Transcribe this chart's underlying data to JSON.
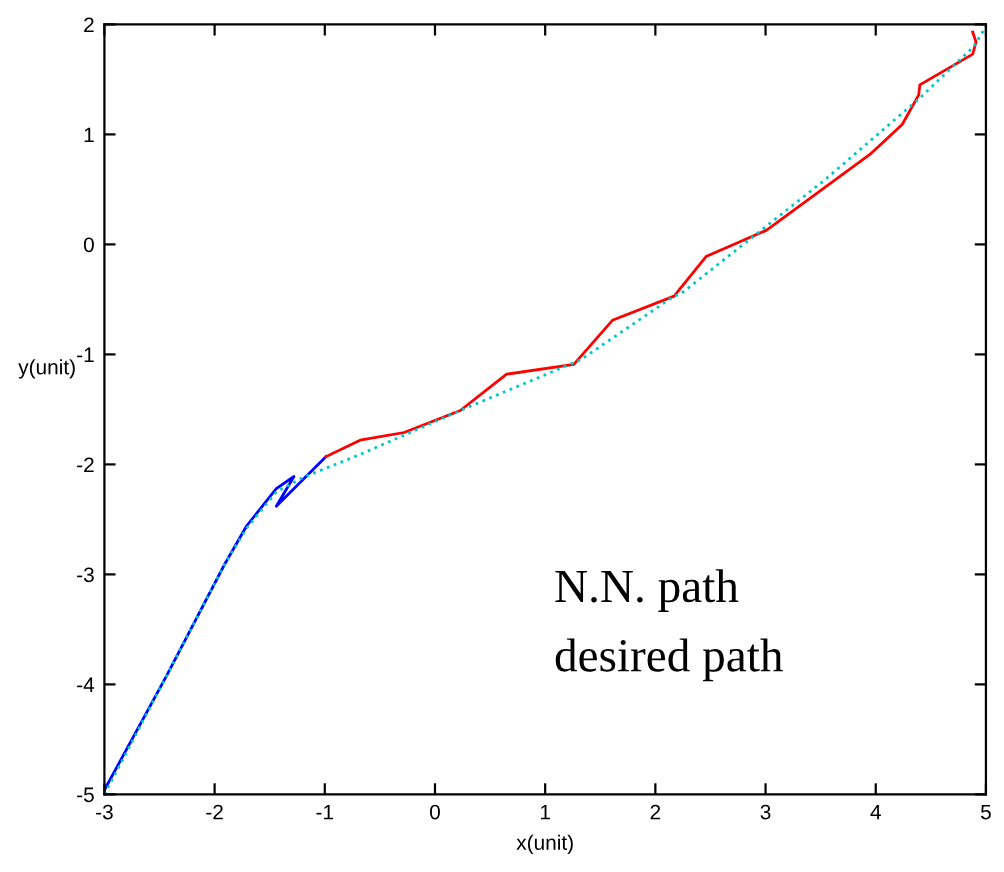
{
  "chart_data": {
    "type": "line",
    "xlabel": "x(unit)",
    "ylabel": "y(unit)",
    "xlim": [
      -3,
      5
    ],
    "ylim": [
      -5,
      2
    ],
    "xticks": [
      -3,
      -2,
      -1,
      0,
      1,
      2,
      3,
      4,
      5
    ],
    "yticks": [
      -5,
      -4,
      -3,
      -2,
      -1,
      0,
      1,
      2
    ],
    "grid": false,
    "legend": false,
    "marker": "none",
    "annotations": [
      "N.N. path",
      "desired path"
    ],
    "series": [
      {
        "color": "#0000ff",
        "line_style": "solid",
        "x": [
          -3,
          -2.44,
          -1.91,
          -1.71,
          -1.44,
          -1.28,
          -1.44,
          -1.22,
          -0.99
        ],
        "values": [
          -4.96,
          -3.93,
          -2.91,
          -2.56,
          -2.22,
          -2.11,
          -2.38,
          -2.16,
          -1.93
        ]
      },
      {
        "color": "#ff0000",
        "line_style": "solid",
        "x": [
          -0.99,
          -0.68,
          -0.28,
          0.23,
          0.65,
          1.26,
          1.61,
          2.17,
          2.46,
          3.01,
          3.95,
          4.24,
          4.39,
          4.4,
          4.88,
          4.91,
          4.88
        ],
        "values": [
          -1.93,
          -1.78,
          -1.71,
          -1.51,
          -1.18,
          -1.09,
          -0.69,
          -0.47,
          -0.11,
          0.13,
          0.82,
          1.09,
          1.36,
          1.45,
          1.73,
          1.84,
          1.93
        ]
      },
      {
        "color": "#00c8c8",
        "line_style": "dotted",
        "x": [
          -3,
          -2.44,
          -1.91,
          -1.71,
          -1.44,
          -1.2,
          -0.68,
          0.23,
          1.32,
          2.17,
          2.23,
          3.53,
          4.4,
          4.89,
          5
        ],
        "values": [
          -5,
          -3.93,
          -2.91,
          -2.58,
          -2.25,
          -2.12,
          -1.91,
          -1.51,
          -1.05,
          -0.47,
          -0.45,
          0.58,
          1.33,
          1.8,
          1.98
        ]
      }
    ]
  }
}
